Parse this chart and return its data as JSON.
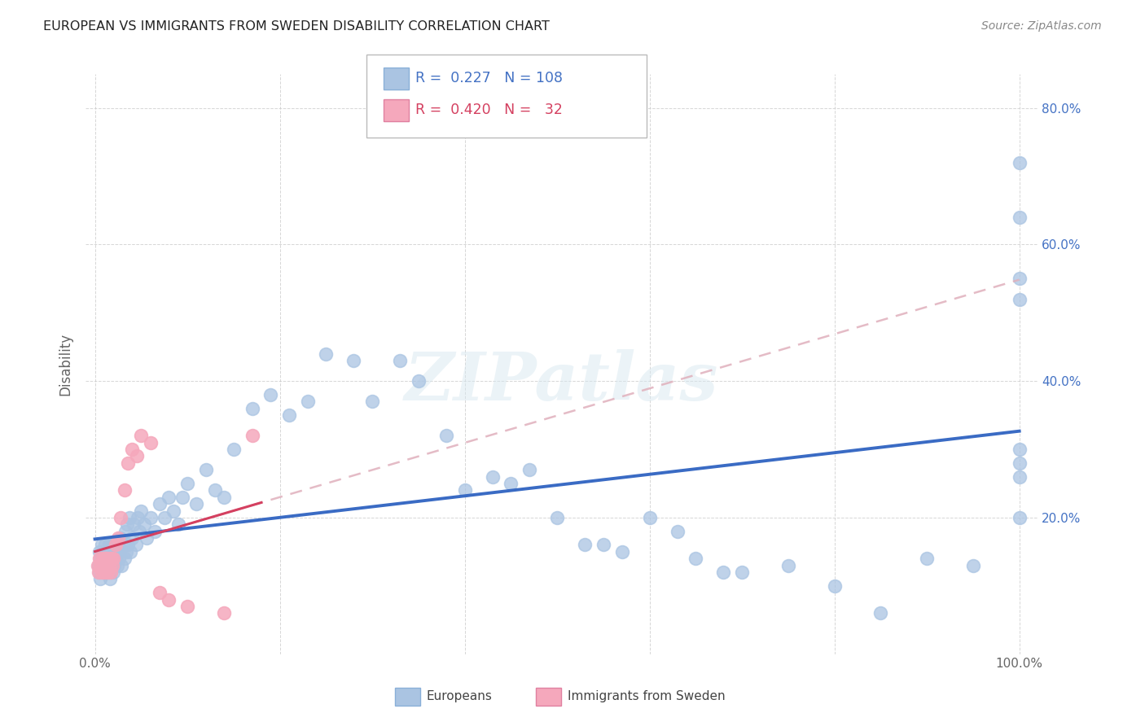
{
  "title": "EUROPEAN VS IMMIGRANTS FROM SWEDEN DISABILITY CORRELATION CHART",
  "source": "Source: ZipAtlas.com",
  "ylabel": "Disability",
  "xlim": [
    0,
    1.0
  ],
  "ylim": [
    0,
    0.85
  ],
  "europeans_R": 0.227,
  "europeans_N": 108,
  "immigrants_R": 0.42,
  "immigrants_N": 32,
  "dot_color_europeans": "#aac4e2",
  "dot_color_immigrants": "#f5a8bc",
  "line_color_europeans": "#3a6bc4",
  "line_color_immigrants": "#d44060",
  "line_color_dashed": "#e0b0bc",
  "background_color": "#ffffff",
  "grid_color": "#cccccc",
  "legend_europeans": "Europeans",
  "legend_immigrants": "Immigrants from Sweden",
  "eu_x": [
    0.004,
    0.005,
    0.005,
    0.006,
    0.006,
    0.007,
    0.007,
    0.008,
    0.008,
    0.009,
    0.009,
    0.01,
    0.01,
    0.011,
    0.011,
    0.012,
    0.012,
    0.013,
    0.013,
    0.014,
    0.014,
    0.015,
    0.015,
    0.016,
    0.016,
    0.017,
    0.017,
    0.018,
    0.018,
    0.019,
    0.02,
    0.02,
    0.021,
    0.022,
    0.022,
    0.023,
    0.024,
    0.025,
    0.026,
    0.027,
    0.028,
    0.029,
    0.03,
    0.032,
    0.033,
    0.034,
    0.035,
    0.036,
    0.037,
    0.038,
    0.04,
    0.042,
    0.044,
    0.046,
    0.048,
    0.05,
    0.053,
    0.056,
    0.06,
    0.065,
    0.07,
    0.075,
    0.08,
    0.085,
    0.09,
    0.095,
    0.1,
    0.11,
    0.12,
    0.13,
    0.14,
    0.15,
    0.17,
    0.19,
    0.21,
    0.23,
    0.25,
    0.28,
    0.3,
    0.33,
    0.35,
    0.38,
    0.4,
    0.43,
    0.45,
    0.47,
    0.5,
    0.53,
    0.55,
    0.57,
    0.6,
    0.63,
    0.65,
    0.68,
    0.7,
    0.75,
    0.8,
    0.85,
    0.9,
    0.95,
    1.0,
    1.0,
    1.0,
    1.0,
    1.0,
    1.0,
    1.0,
    1.0
  ],
  "eu_y": [
    0.13,
    0.12,
    0.15,
    0.14,
    0.11,
    0.13,
    0.16,
    0.12,
    0.14,
    0.13,
    0.15,
    0.12,
    0.14,
    0.13,
    0.16,
    0.12,
    0.14,
    0.13,
    0.15,
    0.12,
    0.14,
    0.13,
    0.16,
    0.11,
    0.15,
    0.12,
    0.14,
    0.13,
    0.16,
    0.14,
    0.12,
    0.16,
    0.13,
    0.14,
    0.16,
    0.15,
    0.13,
    0.16,
    0.14,
    0.15,
    0.17,
    0.13,
    0.16,
    0.14,
    0.18,
    0.15,
    0.19,
    0.16,
    0.2,
    0.15,
    0.17,
    0.19,
    0.16,
    0.2,
    0.18,
    0.21,
    0.19,
    0.17,
    0.2,
    0.18,
    0.22,
    0.2,
    0.23,
    0.21,
    0.19,
    0.23,
    0.25,
    0.22,
    0.27,
    0.24,
    0.23,
    0.3,
    0.36,
    0.38,
    0.35,
    0.37,
    0.44,
    0.43,
    0.37,
    0.43,
    0.4,
    0.32,
    0.24,
    0.26,
    0.25,
    0.27,
    0.2,
    0.16,
    0.16,
    0.15,
    0.2,
    0.18,
    0.14,
    0.12,
    0.12,
    0.13,
    0.1,
    0.06,
    0.14,
    0.13,
    0.28,
    0.3,
    0.26,
    0.2,
    0.55,
    0.64,
    0.72,
    0.52
  ],
  "im_x": [
    0.003,
    0.004,
    0.005,
    0.006,
    0.007,
    0.008,
    0.009,
    0.01,
    0.011,
    0.012,
    0.013,
    0.014,
    0.015,
    0.016,
    0.017,
    0.018,
    0.019,
    0.02,
    0.022,
    0.025,
    0.028,
    0.032,
    0.036,
    0.04,
    0.045,
    0.05,
    0.06,
    0.07,
    0.08,
    0.1,
    0.14,
    0.17
  ],
  "im_y": [
    0.13,
    0.12,
    0.14,
    0.13,
    0.12,
    0.14,
    0.13,
    0.12,
    0.14,
    0.13,
    0.14,
    0.12,
    0.13,
    0.14,
    0.12,
    0.14,
    0.13,
    0.14,
    0.16,
    0.17,
    0.2,
    0.24,
    0.28,
    0.3,
    0.29,
    0.32,
    0.31,
    0.09,
    0.08,
    0.07,
    0.06,
    0.32
  ]
}
